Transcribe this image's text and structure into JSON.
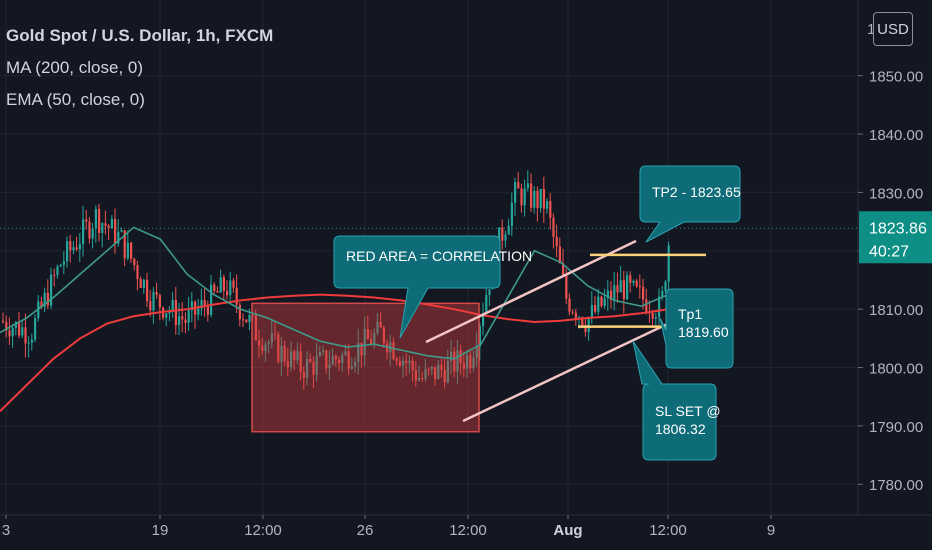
{
  "header": {
    "symbol_title": "Gold Spot / U.S. Dollar, 1h, FXCM",
    "indicator_1": "MA (200, close, 0)",
    "indicator_2": "EMA (50, close, 0)"
  },
  "currency_button": "USD",
  "colors": {
    "background": "#131722",
    "grid": "#1f2430",
    "axis_text": "#b2b5be",
    "candle_up": "#26a69a",
    "candle_down": "#ef5350",
    "ma200": "#ef3b3b",
    "ema50": "#3e9b8b",
    "callout_fill": "#0e6b78",
    "channel_lines": "#f4c4c4",
    "tp_lines": "#ffd27a",
    "price_tag": "#0e8f86"
  },
  "chart_data": {
    "type": "candlestick",
    "ylim": [
      1778.5,
      1858.0
    ],
    "yticks": [
      1780,
      1790,
      1800,
      1810,
      1820,
      1830,
      1840,
      1850
    ],
    "ytick_labels": [
      "1780.00",
      "1790.00",
      "1800.00",
      "1810.00",
      "1820.00",
      "1830.00",
      "1840.00",
      "1850.00"
    ],
    "top_cut_label": "1",
    "x_labels": [
      "3",
      "19",
      "12:00",
      "26",
      "12:00",
      "Aug",
      "12:00",
      "9"
    ],
    "last_price": "1823.86",
    "countdown": "40:27",
    "series": [
      {
        "name": "MA (200, close, 0)",
        "color": "#ef3b3b",
        "values": [
          1792.5,
          1797.0,
          1801.5,
          1805.0,
          1807.5,
          1808.8,
          1809.5,
          1810.0,
          1810.8,
          1811.5,
          1812.0,
          1812.3,
          1812.5,
          1812.3,
          1812.0,
          1811.5,
          1810.8,
          1810.0,
          1809.0,
          1808.3,
          1807.8,
          1808.0,
          1808.5,
          1808.8,
          1809.3,
          1810.0
        ]
      },
      {
        "name": "EMA (50, close, 0)",
        "color": "#3e9b8b",
        "values": [
          1806.0,
          1808.5,
          1812.0,
          1816.0,
          1820.0,
          1824.0,
          1822.0,
          1816.0,
          1812.5,
          1810.0,
          1808.5,
          1806.5,
          1804.5,
          1803.5,
          1804.0,
          1803.0,
          1802.0,
          1801.5,
          1804.0,
          1812.0,
          1820.0,
          1818.0,
          1814.0,
          1811.5,
          1810.5,
          1812.5
        ]
      }
    ],
    "annotations": [
      {
        "kind": "rectangle",
        "label": "RED AREA = CORRELATION",
        "y_range": [
          1789.0,
          1811.0
        ]
      },
      {
        "kind": "callout",
        "text": "TP2 - 1823.65",
        "price": 1823.65
      },
      {
        "kind": "callout",
        "text": "Tp1 1819.60",
        "price": 1819.6
      },
      {
        "kind": "callout",
        "text": "SL SET @ 1806.32",
        "price": 1806.32
      },
      {
        "kind": "horizontal",
        "price": 1819.3
      },
      {
        "kind": "horizontal",
        "price": 1807.0
      }
    ]
  },
  "callouts": {
    "red_area": "RED AREA = CORRELATION",
    "tp2": "TP2 - 1823.65",
    "tp1_line1": "Tp1",
    "tp1_line2": "1819.60",
    "sl_line1": "SL SET @",
    "sl_line2": "1806.32"
  }
}
